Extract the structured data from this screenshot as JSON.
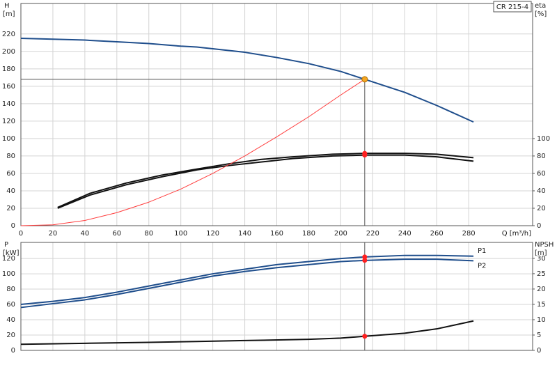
{
  "chart_data": [
    {
      "type": "line",
      "title": "CR 215-4",
      "y_label": "H",
      "y_unit": "[m]",
      "y2_label": "eta",
      "y2_unit": "[%]",
      "x_label": "Q [m³/h]",
      "xlim": [
        0,
        320
      ],
      "xticks": [
        0,
        20,
        40,
        60,
        80,
        100,
        120,
        140,
        160,
        180,
        200,
        220,
        240,
        260,
        280
      ],
      "ylim": [
        0,
        255
      ],
      "yticks": [
        0,
        20,
        40,
        60,
        80,
        100,
        120,
        140,
        160,
        180,
        200,
        220
      ],
      "y2lim": [
        0,
        255
      ],
      "y2ticks": [
        0,
        20,
        40,
        60,
        80,
        100
      ],
      "grid": true,
      "show_x_tick_labels": true,
      "operating_point": {
        "x": 215,
        "y": 168,
        "color": "#f5a623"
      },
      "series": [
        {
          "color": "#1f4e8c",
          "x": [
            0,
            20,
            40,
            60,
            80,
            100,
            110,
            120,
            140,
            160,
            180,
            200,
            215,
            240,
            260,
            283
          ],
          "values": [
            215,
            214,
            213,
            211,
            209,
            206,
            205,
            203,
            199,
            193,
            186,
            177,
            168,
            153,
            138,
            119
          ]
        },
        {
          "color": "#111111",
          "axis": "y2",
          "x": [
            23,
            43,
            66,
            88,
            110,
            130,
            150,
            170,
            195,
            215,
            240,
            260,
            283
          ],
          "values": [
            21,
            37,
            49,
            58,
            65,
            71,
            76,
            79,
            82,
            83,
            83,
            82,
            78
          ]
        },
        {
          "color": "#111111",
          "axis": "y2",
          "x": [
            23,
            43,
            66,
            88,
            110,
            130,
            150,
            170,
            195,
            215,
            240,
            260,
            283
          ],
          "values": [
            20,
            35,
            47,
            56,
            64,
            69,
            73,
            77,
            80,
            81,
            81,
            79,
            74
          ]
        },
        {
          "color": "#ff3b3b",
          "thin": true,
          "x": [
            0,
            20,
            40,
            60,
            80,
            100,
            120,
            140,
            160,
            180,
            200,
            215
          ],
          "values": [
            0,
            1,
            6,
            15,
            27,
            42,
            60,
            80,
            102,
            125,
            150,
            168
          ]
        }
      ]
    },
    {
      "type": "line",
      "y_label": "P",
      "y_unit": "[kW]",
      "y2_label": "NPSH",
      "y2_unit": "[m]",
      "xlim": [
        0,
        320
      ],
      "xticks": [
        0,
        20,
        40,
        60,
        80,
        100,
        120,
        140,
        160,
        180,
        200,
        220,
        240,
        260,
        280
      ],
      "ylim": [
        0,
        141
      ],
      "yticks": [
        0,
        20,
        40,
        60,
        80,
        100,
        120
      ],
      "y2lim": [
        0,
        35.2
      ],
      "y2ticks": [
        0,
        5,
        10,
        15,
        20,
        25,
        30
      ],
      "grid": true,
      "show_x_tick_labels": false,
      "series": [
        {
          "name": "P1",
          "color": "#1f4e8c",
          "x": [
            0,
            20,
            40,
            60,
            80,
            100,
            120,
            140,
            160,
            180,
            200,
            215,
            240,
            260,
            283
          ],
          "values": [
            60,
            64,
            69,
            76,
            84,
            92,
            100,
            106,
            112,
            116,
            120,
            122,
            124,
            124,
            123
          ]
        },
        {
          "name": "P2",
          "color": "#1f4e8c",
          "x": [
            0,
            20,
            40,
            60,
            80,
            100,
            120,
            140,
            160,
            180,
            200,
            215,
            240,
            260,
            283
          ],
          "values": [
            56,
            61,
            66,
            73,
            81,
            89,
            97,
            103,
            108,
            112,
            116,
            117.5,
            119,
            119,
            117
          ]
        },
        {
          "color": "#111111",
          "axis": "y2",
          "x": [
            0,
            40,
            80,
            110,
            140,
            180,
            200,
            215,
            240,
            260,
            283
          ],
          "values": [
            2,
            2.3,
            2.6,
            2.9,
            3.2,
            3.6,
            4,
            4.6,
            5.6,
            7,
            9.6
          ]
        }
      ]
    }
  ]
}
